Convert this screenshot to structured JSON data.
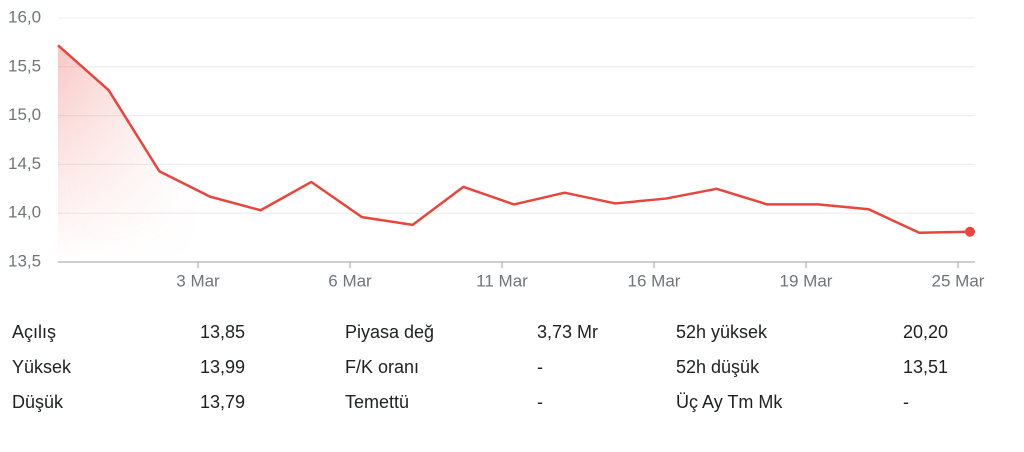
{
  "chart_data": {
    "type": "line",
    "color": "#e8453c",
    "categories": [
      null,
      null,
      null,
      "3 Mar",
      null,
      null,
      "6 Mar",
      null,
      null,
      "11 Mar",
      null,
      null,
      "16 Mar",
      null,
      null,
      "19 Mar",
      null,
      null,
      "25 Mar"
    ],
    "values": [
      15.72,
      15.26,
      14.43,
      14.17,
      14.03,
      14.32,
      13.96,
      13.88,
      14.27,
      14.09,
      14.21,
      14.1,
      14.15,
      14.25,
      14.09,
      14.09,
      14.04,
      13.8,
      13.81
    ],
    "ylim": [
      13.5,
      16.0
    ],
    "yticks": [
      {
        "value": 13.5,
        "label": "13,5"
      },
      {
        "value": 14.0,
        "label": "14,0"
      },
      {
        "value": 14.5,
        "label": "14,5"
      },
      {
        "value": 15.0,
        "label": "15,0"
      },
      {
        "value": 15.5,
        "label": "15,5"
      },
      {
        "value": 16.0,
        "label": "16,0"
      }
    ],
    "grid": true
  },
  "stats": {
    "rows": [
      [
        "Açılış",
        "13,85",
        "Piyasa değ",
        "3,73 Mr",
        "52h yüksek",
        "20,20"
      ],
      [
        "Yüksek",
        "13,99",
        "F/K oranı",
        "-",
        "52h düşük",
        "13,51"
      ],
      [
        "Düşük",
        "13,79",
        "Temettü",
        "-",
        "Üç Ay Tm Mk",
        "-"
      ]
    ]
  }
}
